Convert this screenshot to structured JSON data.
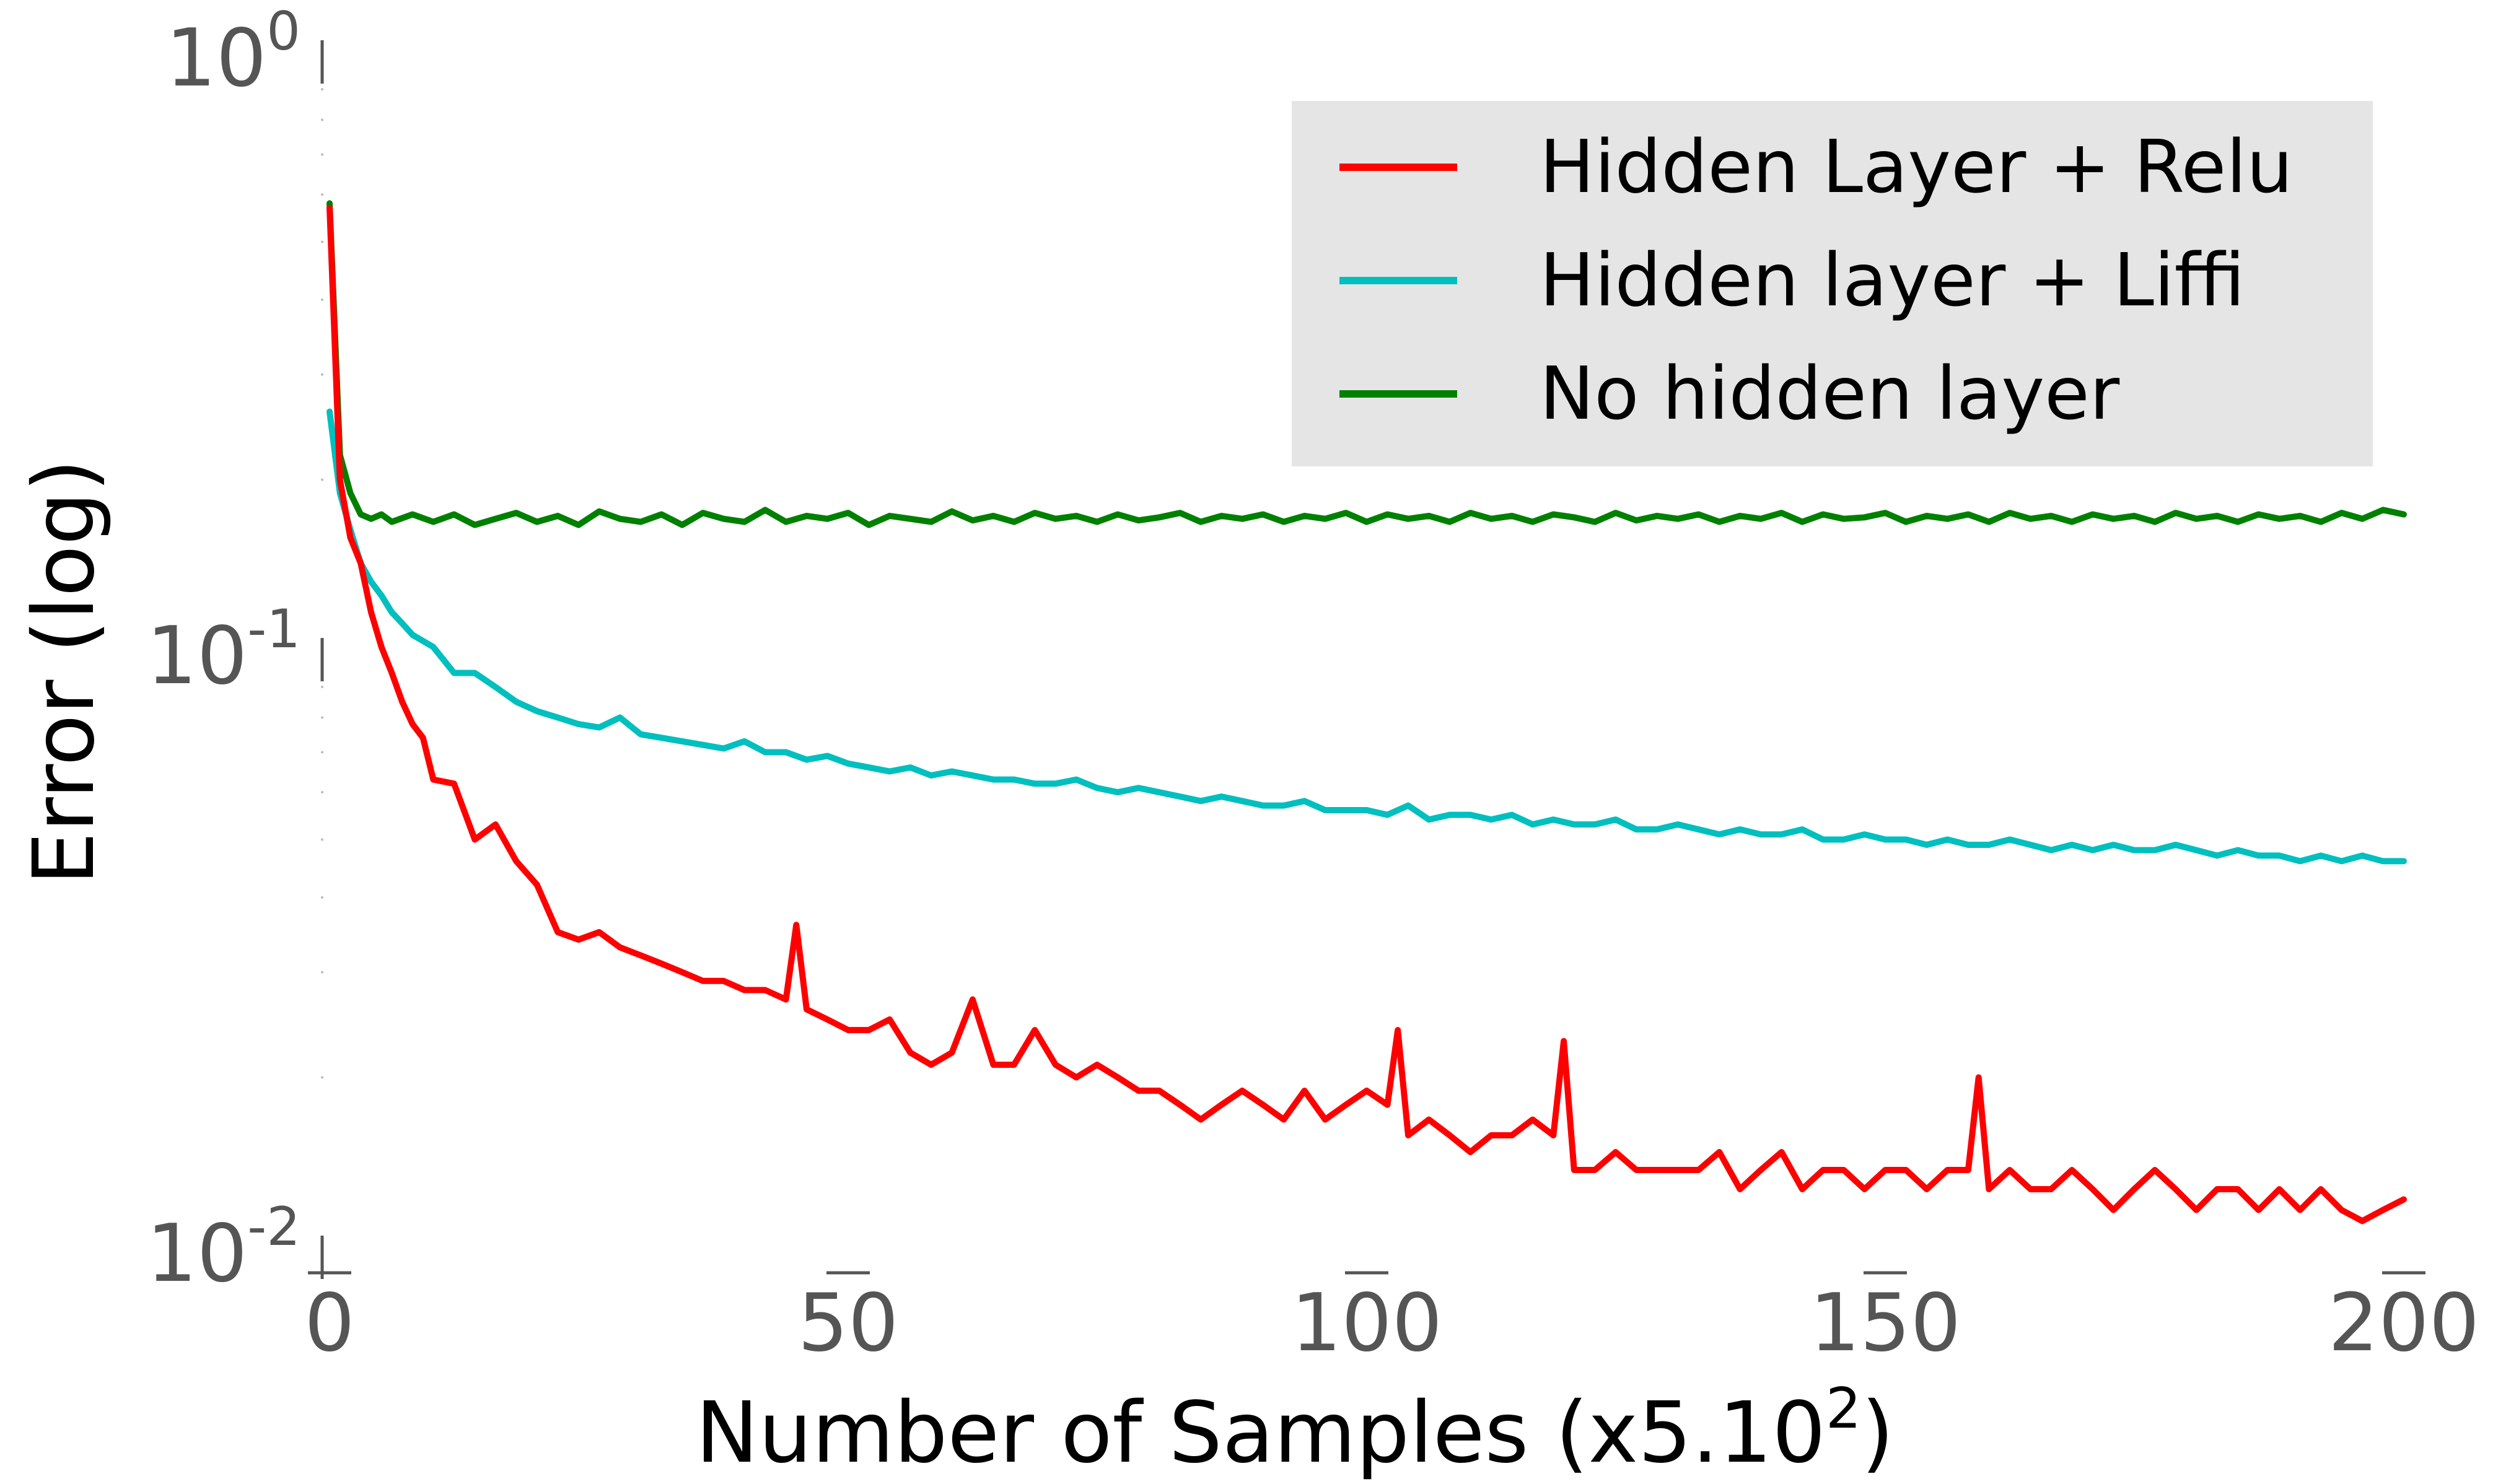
{
  "chart_data": {
    "type": "line",
    "title": "",
    "xlabel": "Number of Samples (x5.10",
    "xlabel_sup": "2",
    "xlabel_end": ")",
    "ylabel": "Error (log)",
    "xlim": [
      0,
      200
    ],
    "ylim": [
      0.01,
      1
    ],
    "yscale": "log",
    "grid": false,
    "legend_position": "top-right",
    "x_ticks": [
      {
        "value": 0,
        "label": "0"
      },
      {
        "value": 50,
        "label": "50"
      },
      {
        "value": 100,
        "label": "100"
      },
      {
        "value": 150,
        "label": "150"
      },
      {
        "value": 200,
        "label": "200"
      }
    ],
    "y_ticks": [
      {
        "value": 1,
        "base": "10",
        "exp": "0"
      },
      {
        "value": 0.1,
        "base": "10",
        "exp": "-1"
      },
      {
        "value": 0.01,
        "base": "10",
        "exp": "-2"
      }
    ],
    "series": [
      {
        "name": "Hidden Layer + Relu",
        "color": "#ff0000",
        "x": [
          0,
          1,
          2,
          3,
          4,
          5,
          6,
          7,
          8,
          9,
          10,
          12,
          14,
          16,
          18,
          20,
          22,
          24,
          26,
          28,
          30,
          32,
          34,
          36,
          38,
          40,
          42,
          44,
          45,
          46,
          48,
          50,
          52,
          54,
          56,
          58,
          60,
          62,
          64,
          66,
          68,
          70,
          72,
          74,
          76,
          78,
          80,
          82,
          84,
          86,
          88,
          90,
          92,
          94,
          96,
          98,
          100,
          102,
          103,
          104,
          106,
          108,
          110,
          112,
          114,
          116,
          118,
          119,
          120,
          122,
          124,
          126,
          128,
          130,
          132,
          134,
          136,
          138,
          140,
          142,
          144,
          146,
          148,
          150,
          152,
          154,
          156,
          158,
          159,
          160,
          162,
          164,
          166,
          168,
          170,
          172,
          174,
          176,
          178,
          180,
          182,
          184,
          186,
          188,
          190,
          192,
          194,
          196,
          198,
          200
        ],
        "values": [
          0.57,
          0.2,
          0.16,
          0.145,
          0.12,
          0.105,
          0.095,
          0.085,
          0.078,
          0.074,
          0.063,
          0.062,
          0.05,
          0.053,
          0.046,
          0.042,
          0.035,
          0.034,
          0.035,
          0.033,
          0.032,
          0.031,
          0.03,
          0.029,
          0.029,
          0.028,
          0.028,
          0.027,
          0.036,
          0.026,
          0.025,
          0.024,
          0.024,
          0.025,
          0.022,
          0.021,
          0.022,
          0.027,
          0.021,
          0.021,
          0.024,
          0.021,
          0.02,
          0.021,
          0.02,
          0.019,
          0.019,
          0.018,
          0.017,
          0.018,
          0.019,
          0.018,
          0.017,
          0.019,
          0.017,
          0.018,
          0.019,
          0.018,
          0.024,
          0.016,
          0.017,
          0.016,
          0.015,
          0.016,
          0.016,
          0.017,
          0.016,
          0.023,
          0.014,
          0.014,
          0.015,
          0.014,
          0.014,
          0.014,
          0.014,
          0.015,
          0.013,
          0.014,
          0.015,
          0.013,
          0.014,
          0.014,
          0.013,
          0.014,
          0.014,
          0.013,
          0.014,
          0.014,
          0.02,
          0.013,
          0.014,
          0.013,
          0.013,
          0.014,
          0.013,
          0.012,
          0.013,
          0.014,
          0.013,
          0.012,
          0.013,
          0.013,
          0.012,
          0.013,
          0.012,
          0.013,
          0.012,
          0.0115,
          0.012,
          0.0125
        ]
      },
      {
        "name": "Hidden layer + Liffi",
        "color": "#00bfbf",
        "x": [
          0,
          1,
          2,
          3,
          4,
          5,
          6,
          7,
          8,
          10,
          12,
          14,
          16,
          18,
          20,
          22,
          24,
          26,
          28,
          30,
          32,
          34,
          36,
          38,
          40,
          42,
          44,
          46,
          48,
          50,
          52,
          54,
          56,
          58,
          60,
          62,
          64,
          66,
          68,
          70,
          72,
          74,
          76,
          78,
          80,
          82,
          84,
          86,
          88,
          90,
          92,
          94,
          96,
          98,
          100,
          102,
          104,
          106,
          108,
          110,
          112,
          114,
          116,
          118,
          120,
          122,
          124,
          126,
          128,
          130,
          132,
          134,
          136,
          138,
          140,
          142,
          144,
          146,
          148,
          150,
          152,
          154,
          156,
          158,
          160,
          162,
          164,
          166,
          168,
          170,
          172,
          174,
          176,
          178,
          180,
          182,
          184,
          186,
          188,
          190,
          192,
          194,
          196,
          198,
          200
        ],
        "values": [
          0.26,
          0.19,
          0.165,
          0.145,
          0.135,
          0.128,
          0.12,
          0.115,
          0.11,
          0.105,
          0.095,
          0.095,
          0.09,
          0.085,
          0.082,
          0.08,
          0.078,
          0.077,
          0.08,
          0.075,
          0.074,
          0.073,
          0.072,
          0.071,
          0.073,
          0.07,
          0.07,
          0.068,
          0.069,
          0.067,
          0.066,
          0.065,
          0.066,
          0.064,
          0.065,
          0.064,
          0.063,
          0.063,
          0.062,
          0.062,
          0.063,
          0.061,
          0.06,
          0.061,
          0.06,
          0.059,
          0.058,
          0.059,
          0.058,
          0.057,
          0.057,
          0.058,
          0.056,
          0.056,
          0.056,
          0.055,
          0.057,
          0.054,
          0.055,
          0.055,
          0.054,
          0.055,
          0.053,
          0.054,
          0.053,
          0.053,
          0.054,
          0.052,
          0.052,
          0.053,
          0.052,
          0.051,
          0.052,
          0.051,
          0.051,
          0.052,
          0.05,
          0.05,
          0.051,
          0.05,
          0.05,
          0.049,
          0.05,
          0.049,
          0.049,
          0.05,
          0.049,
          0.048,
          0.049,
          0.048,
          0.049,
          0.048,
          0.048,
          0.049,
          0.048,
          0.047,
          0.048,
          0.047,
          0.047,
          0.046,
          0.047,
          0.046,
          0.047,
          0.046,
          0.046
        ]
      },
      {
        "name": "No hidden layer",
        "color": "#008000",
        "x": [
          0,
          1,
          2,
          3,
          4,
          5,
          6,
          8,
          10,
          12,
          14,
          16,
          18,
          20,
          22,
          24,
          26,
          28,
          30,
          32,
          34,
          36,
          38,
          40,
          42,
          44,
          46,
          48,
          50,
          52,
          54,
          56,
          58,
          60,
          62,
          64,
          66,
          68,
          70,
          72,
          74,
          76,
          78,
          80,
          82,
          84,
          86,
          88,
          90,
          92,
          94,
          96,
          98,
          100,
          102,
          104,
          106,
          108,
          110,
          112,
          114,
          116,
          118,
          120,
          122,
          124,
          126,
          128,
          130,
          132,
          134,
          136,
          138,
          140,
          142,
          144,
          146,
          148,
          150,
          152,
          154,
          156,
          158,
          160,
          162,
          164,
          166,
          168,
          170,
          172,
          174,
          176,
          178,
          180,
          182,
          184,
          186,
          188,
          190,
          192,
          194,
          196,
          198,
          200
        ],
        "values": [
          0.58,
          0.22,
          0.19,
          0.175,
          0.172,
          0.175,
          0.17,
          0.175,
          0.17,
          0.175,
          0.168,
          0.172,
          0.176,
          0.17,
          0.174,
          0.168,
          0.177,
          0.172,
          0.17,
          0.175,
          0.168,
          0.176,
          0.172,
          0.17,
          0.178,
          0.17,
          0.174,
          0.172,
          0.176,
          0.168,
          0.174,
          0.172,
          0.17,
          0.177,
          0.171,
          0.174,
          0.17,
          0.176,
          0.172,
          0.174,
          0.17,
          0.175,
          0.171,
          0.173,
          0.176,
          0.17,
          0.174,
          0.172,
          0.175,
          0.17,
          0.174,
          0.172,
          0.176,
          0.17,
          0.175,
          0.172,
          0.174,
          0.17,
          0.176,
          0.172,
          0.174,
          0.17,
          0.175,
          0.173,
          0.17,
          0.176,
          0.171,
          0.174,
          0.172,
          0.175,
          0.17,
          0.174,
          0.172,
          0.176,
          0.17,
          0.175,
          0.172,
          0.173,
          0.176,
          0.17,
          0.174,
          0.172,
          0.175,
          0.17,
          0.176,
          0.172,
          0.174,
          0.17,
          0.175,
          0.172,
          0.174,
          0.17,
          0.176,
          0.172,
          0.174,
          0.17,
          0.175,
          0.172,
          0.174,
          0.17,
          0.176,
          0.172,
          0.178,
          0.175
        ]
      }
    ]
  }
}
